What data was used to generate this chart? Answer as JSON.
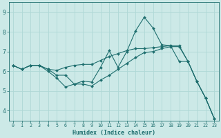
{
  "xlabel": "Humidex (Indice chaleur)",
  "background_color": "#cce9e7",
  "line_color": "#1e6e6e",
  "grid_color": "#afd8d6",
  "xlim": [
    -0.5,
    23.5
  ],
  "ylim": [
    3.5,
    9.5
  ],
  "xticks": [
    0,
    1,
    2,
    3,
    4,
    5,
    6,
    7,
    8,
    9,
    10,
    11,
    12,
    13,
    14,
    15,
    16,
    17,
    18,
    19,
    20,
    21,
    22,
    23
  ],
  "yticks": [
    4,
    5,
    6,
    7,
    8,
    9
  ],
  "lines": [
    {
      "x": [
        0,
        1,
        2,
        3,
        4,
        5,
        6,
        7,
        8,
        9,
        10,
        11,
        12,
        13,
        14,
        15,
        16,
        17,
        18,
        19,
        20,
        21,
        22,
        23
      ],
      "y": [
        6.3,
        6.1,
        6.3,
        6.3,
        6.1,
        5.8,
        5.8,
        5.35,
        5.5,
        5.45,
        6.2,
        7.05,
        6.2,
        7.0,
        8.05,
        8.75,
        8.2,
        7.35,
        7.3,
        6.5,
        6.5,
        5.5,
        4.65,
        3.6
      ]
    },
    {
      "x": [
        0,
        1,
        2,
        3,
        4,
        5,
        6,
        7,
        8,
        9,
        10,
        11,
        12,
        13,
        14,
        15,
        16,
        17,
        18,
        19,
        20,
        21,
        22,
        23
      ],
      "y": [
        6.3,
        6.1,
        6.3,
        6.3,
        6.1,
        6.05,
        6.2,
        6.3,
        6.35,
        6.35,
        6.55,
        6.75,
        6.9,
        7.05,
        7.15,
        7.15,
        7.2,
        7.25,
        7.3,
        7.3,
        6.5,
        5.5,
        4.65,
        3.6
      ]
    },
    {
      "x": [
        0,
        1,
        2,
        3,
        4,
        5,
        6,
        7,
        8,
        9,
        10,
        11,
        12,
        13,
        14,
        15,
        16,
        17,
        18,
        19,
        20,
        21,
        22,
        23
      ],
      "y": [
        6.3,
        6.1,
        6.3,
        6.3,
        6.0,
        5.65,
        5.2,
        5.35,
        5.35,
        5.25,
        5.55,
        5.8,
        6.1,
        6.4,
        6.7,
        6.95,
        7.0,
        7.15,
        7.25,
        7.25,
        6.5,
        5.5,
        4.65,
        3.6
      ]
    }
  ]
}
